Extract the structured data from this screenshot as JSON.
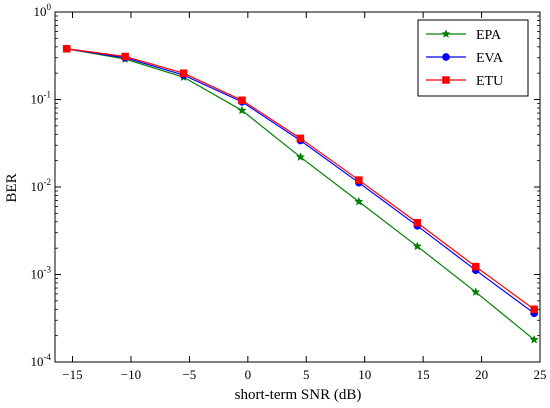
{
  "chart_data": {
    "type": "line",
    "xlabel": "short-term SNR (dB)",
    "ylabel": "BER",
    "xlim": [
      -16.5,
      25
    ],
    "ylim": [
      0.0001,
      1
    ],
    "yscale": "log",
    "xticks": [
      -15,
      -10,
      -5,
      0,
      5,
      10,
      15,
      20,
      25
    ],
    "xtick_labels": [
      "−15",
      "−10",
      "−5",
      "0",
      "5",
      "10",
      "15",
      "20",
      "25"
    ],
    "yticks": [
      0.0001,
      0.001,
      0.01,
      0.1,
      1
    ],
    "ytick_labels": [
      {
        "base": "10",
        "exp": "-4"
      },
      {
        "base": "10",
        "exp": "-3"
      },
      {
        "base": "10",
        "exp": "-2"
      },
      {
        "base": "10",
        "exp": "-1"
      },
      {
        "base": "10",
        "exp": "0"
      }
    ],
    "grid": false,
    "legend_position": "top-right",
    "x": [
      -15.5,
      -10.5,
      -5.5,
      -0.5,
      4.5,
      9.5,
      14.5,
      19.5,
      24.5
    ],
    "series": [
      {
        "name": "EPA",
        "color": "#008000",
        "marker": "star",
        "values": [
          0.38,
          0.29,
          0.18,
          0.075,
          0.022,
          0.0068,
          0.0021,
          0.00063,
          0.00018
        ]
      },
      {
        "name": "EVA",
        "color": "#0000ff",
        "marker": "circle",
        "values": [
          0.38,
          0.3,
          0.19,
          0.094,
          0.034,
          0.0112,
          0.0036,
          0.00112,
          0.00036
        ]
      },
      {
        "name": "ETU",
        "color": "#ff0000",
        "marker": "square",
        "values": [
          0.38,
          0.31,
          0.2,
          0.098,
          0.036,
          0.012,
          0.0039,
          0.00123,
          0.0004
        ]
      }
    ]
  }
}
